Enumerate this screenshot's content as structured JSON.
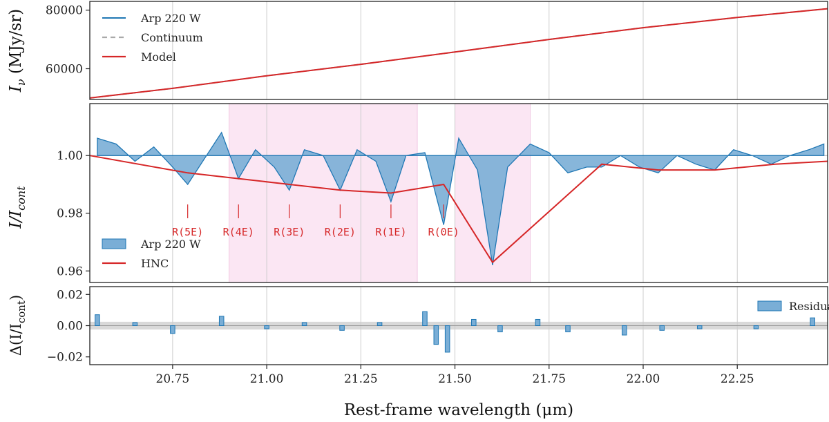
{
  "colors": {
    "data_line": "#1f77b4",
    "data_fill": "#7aaed6",
    "model": "#d62728",
    "continuum": "#a9a9a9",
    "shade": "#fbe6f3",
    "gridline": "#cccccc",
    "zero_band": "#d9d9d9"
  },
  "xaxis": {
    "label": "Rest-frame wavelength (μm)",
    "range": [
      20.53,
      22.49
    ],
    "ticks": [
      "20.75",
      "21.00",
      "21.25",
      "21.50",
      "21.75",
      "22.00",
      "22.25"
    ],
    "tick_values": [
      20.75,
      21.0,
      21.25,
      21.5,
      21.75,
      22.0,
      22.25
    ]
  },
  "chart_data": [
    {
      "type": "line",
      "panel": "top",
      "ylabel": "I_ν (MJy/sr)",
      "ylabel_main": "I",
      "ylabel_sub": "ν",
      "ylabel_unit": " (MJy/sr)",
      "ylim": [
        49500,
        83000
      ],
      "yticks": [
        "60000",
        "80000"
      ],
      "ytick_values": [
        60000,
        80000
      ],
      "legend": {
        "placement": "top-left",
        "entries": [
          "Arp 220 W",
          "Continuum",
          "Model"
        ]
      },
      "series": [
        {
          "name": "Arp 220 W",
          "x": [
            20.53,
            20.75,
            21.0,
            21.25,
            21.5,
            21.75,
            22.0,
            22.25,
            22.49
          ],
          "y": [
            50000,
            53300,
            57600,
            61500,
            65700,
            70000,
            74000,
            77500,
            80500
          ]
        },
        {
          "name": "Continuum",
          "x": [
            20.53,
            20.75,
            21.0,
            21.25,
            21.5,
            21.75,
            22.0,
            22.25,
            22.49
          ],
          "y": [
            50000,
            53300,
            57600,
            61500,
            65700,
            70000,
            74000,
            77500,
            80500
          ]
        },
        {
          "name": "Model",
          "x": [
            20.53,
            20.75,
            21.0,
            21.25,
            21.5,
            21.75,
            22.0,
            22.25,
            22.49
          ],
          "y": [
            50000,
            53300,
            57600,
            61500,
            65700,
            70000,
            74000,
            77500,
            80500
          ]
        }
      ]
    },
    {
      "type": "line",
      "panel": "middle",
      "ylabel": "I/I_cont",
      "ylabel_main": "I/I",
      "ylabel_sub": "cont",
      "ylim": [
        0.956,
        1.018
      ],
      "yticks": [
        "0.96",
        "0.98",
        "1.00"
      ],
      "ytick_values": [
        0.96,
        0.98,
        1.0
      ],
      "shaded_regions": [
        [
          20.9,
          21.4
        ],
        [
          21.5,
          21.7
        ]
      ],
      "legend": {
        "placement": "lower-left",
        "entries": [
          "Arp 220 W",
          "HNC"
        ]
      },
      "annotations": [
        {
          "text": "R(5E)",
          "x": 20.79
        },
        {
          "text": "R(4E)",
          "x": 20.925
        },
        {
          "text": "R(3E)",
          "x": 21.06
        },
        {
          "text": "R(2E)",
          "x": 21.195
        },
        {
          "text": "R(1E)",
          "x": 21.33
        },
        {
          "text": "R(0E)",
          "x": 21.47
        }
      ],
      "series": [
        {
          "name": "Arp 220 W",
          "x": [
            20.55,
            20.6,
            20.65,
            20.7,
            20.75,
            20.79,
            20.83,
            20.88,
            20.925,
            20.97,
            21.02,
            21.06,
            21.1,
            21.15,
            21.195,
            21.24,
            21.29,
            21.33,
            21.37,
            21.42,
            21.47,
            21.51,
            21.56,
            21.6,
            21.64,
            21.7,
            21.75,
            21.8,
            21.85,
            21.89,
            21.94,
            21.99,
            22.04,
            22.09,
            22.14,
            22.19,
            22.24,
            22.29,
            22.34,
            22.39,
            22.44,
            22.48
          ],
          "y": [
            1.006,
            1.004,
            0.998,
            1.003,
            0.996,
            0.99,
            0.998,
            1.008,
            0.992,
            1.002,
            0.996,
            0.988,
            1.002,
            1.0,
            0.988,
            1.002,
            0.998,
            0.984,
            1.0,
            1.001,
            0.976,
            1.006,
            0.995,
            0.962,
            0.996,
            1.004,
            1.001,
            0.994,
            0.996,
            0.996,
            1.0,
            0.996,
            0.994,
            1.0,
            0.997,
            0.995,
            1.002,
            1.0,
            0.997,
            1.0,
            1.002,
            1.004
          ]
        },
        {
          "name": "HNC",
          "x": [
            20.53,
            20.79,
            20.925,
            21.06,
            21.195,
            21.33,
            21.47,
            21.6,
            21.89,
            22.04,
            22.19,
            22.35,
            22.49
          ],
          "y": [
            1.0,
            0.994,
            0.992,
            0.99,
            0.988,
            0.987,
            0.99,
            0.963,
            0.997,
            0.995,
            0.995,
            0.997,
            0.998
          ]
        }
      ]
    },
    {
      "type": "bar",
      "panel": "bottom",
      "ylabel": "Δ(I/I_cont)",
      "ylabel_main": "Δ(I/I",
      "ylabel_sub": "cont",
      "ylabel_tail": ")",
      "ylim": [
        -0.025,
        0.025
      ],
      "yticks": [
        "−0.02",
        "0.00",
        "0.02"
      ],
      "ytick_values": [
        -0.02,
        0.0,
        0.02
      ],
      "legend": {
        "placement": "top-right",
        "entries": [
          "Residuals"
        ]
      },
      "series": [
        {
          "name": "Residuals",
          "x": [
            20.55,
            20.65,
            20.75,
            20.88,
            21.0,
            21.1,
            21.2,
            21.3,
            21.42,
            21.45,
            21.48,
            21.55,
            21.62,
            21.72,
            21.8,
            21.95,
            22.05,
            22.15,
            22.3,
            22.45
          ],
          "y": [
            0.007,
            0.002,
            -0.005,
            0.006,
            -0.002,
            0.002,
            -0.003,
            0.002,
            0.009,
            -0.012,
            -0.017,
            0.004,
            -0.004,
            0.004,
            -0.004,
            -0.006,
            -0.003,
            -0.002,
            -0.002,
            0.005
          ]
        }
      ]
    }
  ]
}
